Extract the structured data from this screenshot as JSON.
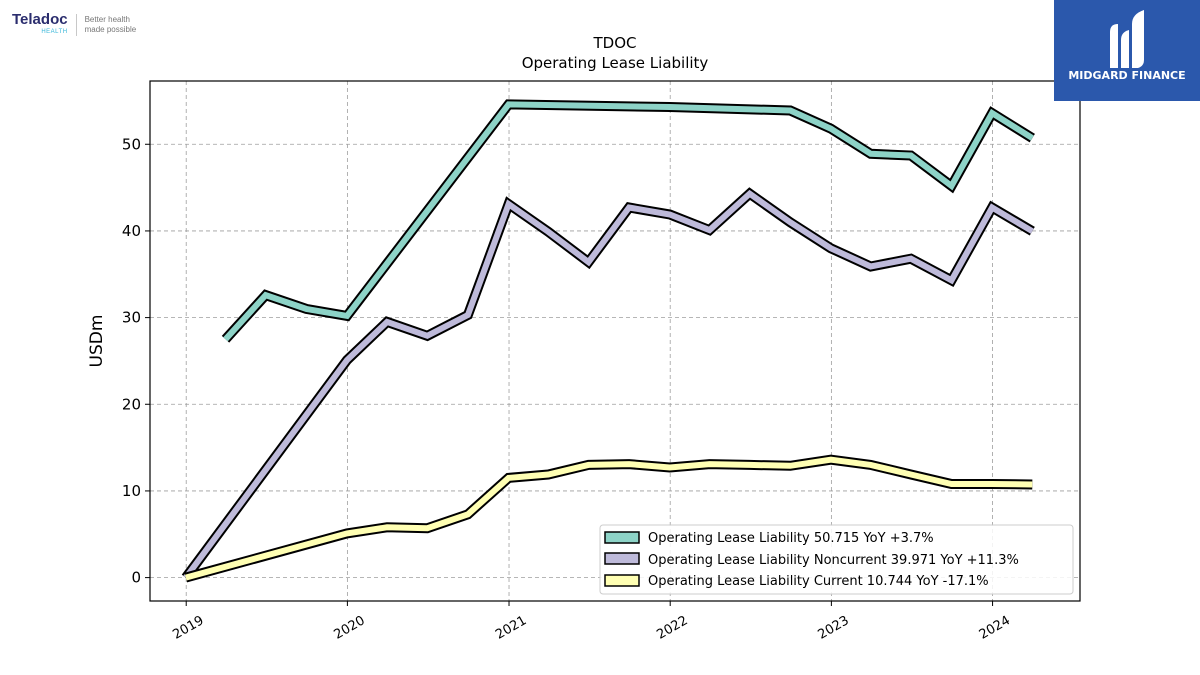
{
  "logos": {
    "left_name": "Teladoc",
    "left_sub": "HEALTH",
    "left_tagline_1": "Better health",
    "left_tagline_2": "made possible",
    "right_name": "MIDGARD FINANCE"
  },
  "chart_data": {
    "type": "line",
    "title": "TDOC",
    "subtitle": "Operating Lease Liability",
    "ylabel": "USDm",
    "xlabel": "",
    "x_range": [
      "2018-10-11",
      "2024-07-17"
    ],
    "ylim": [
      -2.7,
      57.3
    ],
    "yticks": [
      0,
      10,
      20,
      30,
      40,
      50
    ],
    "xticks": [
      {
        "label": "2019",
        "date": "2019-01-01"
      },
      {
        "label": "2020",
        "date": "2020-01-01"
      },
      {
        "label": "2021",
        "date": "2021-01-01"
      },
      {
        "label": "2022",
        "date": "2022-01-01"
      },
      {
        "label": "2023",
        "date": "2023-01-01"
      },
      {
        "label": "2024",
        "date": "2024-01-01"
      }
    ],
    "grid": true,
    "legend_position": "bottom-right",
    "series": [
      {
        "name": "Operating Lease Liability",
        "legend": "Operating Lease Liability  50.715 YoY +3.7%",
        "color": "#8dd3c7",
        "points": [
          [
            "2019-03-31",
            27.5
          ],
          [
            "2019-06-30",
            32.6
          ],
          [
            "2019-09-30",
            31.0
          ],
          [
            "2019-12-31",
            30.2
          ],
          [
            "2020-12-31",
            54.6
          ],
          [
            "2021-12-31",
            54.3
          ],
          [
            "2022-09-30",
            53.9
          ],
          [
            "2022-12-31",
            51.8
          ],
          [
            "2023-03-31",
            48.9
          ],
          [
            "2023-06-30",
            48.7
          ],
          [
            "2023-09-30",
            45.2
          ],
          [
            "2023-12-31",
            53.6
          ],
          [
            "2024-03-31",
            50.715
          ]
        ]
      },
      {
        "name": "Operating Lease Liability Noncurrent",
        "legend": "Operating Lease Liability Noncurrent  39.971 YoY +11.3%",
        "color": "#bebada",
        "points": [
          [
            "2018-12-31",
            0.0
          ],
          [
            "2019-12-31",
            25.1
          ],
          [
            "2020-03-31",
            29.5
          ],
          [
            "2020-06-30",
            27.9
          ],
          [
            "2020-09-30",
            30.3
          ],
          [
            "2020-12-31",
            43.1
          ],
          [
            "2021-03-31",
            39.9
          ],
          [
            "2021-06-30",
            36.4
          ],
          [
            "2021-09-30",
            42.7
          ],
          [
            "2021-12-31",
            41.9
          ],
          [
            "2022-03-31",
            40.1
          ],
          [
            "2022-06-30",
            44.3
          ],
          [
            "2022-09-30",
            41.0
          ],
          [
            "2022-12-31",
            38.0
          ],
          [
            "2023-03-31",
            35.9
          ],
          [
            "2023-06-30",
            36.8
          ],
          [
            "2023-09-30",
            34.3
          ],
          [
            "2023-12-31",
            42.7
          ],
          [
            "2024-03-31",
            39.971
          ]
        ]
      },
      {
        "name": "Operating Lease Liability Current",
        "legend": "Operating Lease Liability Current  10.744 YoY -17.1%",
        "color": "#ffffb3",
        "points": [
          [
            "2018-12-31",
            0.0
          ],
          [
            "2019-12-31",
            5.1
          ],
          [
            "2020-03-31",
            5.8
          ],
          [
            "2020-06-30",
            5.7
          ],
          [
            "2020-09-30",
            7.3
          ],
          [
            "2020-12-31",
            11.5
          ],
          [
            "2021-03-31",
            11.9
          ],
          [
            "2021-06-30",
            13.0
          ],
          [
            "2021-09-30",
            13.1
          ],
          [
            "2021-12-31",
            12.7
          ],
          [
            "2022-03-31",
            13.1
          ],
          [
            "2022-06-30",
            13.0
          ],
          [
            "2022-09-30",
            12.9
          ],
          [
            "2022-12-31",
            13.6
          ],
          [
            "2023-03-31",
            13.0
          ],
          [
            "2023-06-30",
            11.9
          ],
          [
            "2023-09-30",
            10.8
          ],
          [
            "2023-12-31",
            10.8
          ],
          [
            "2024-03-31",
            10.744
          ]
        ]
      }
    ]
  }
}
